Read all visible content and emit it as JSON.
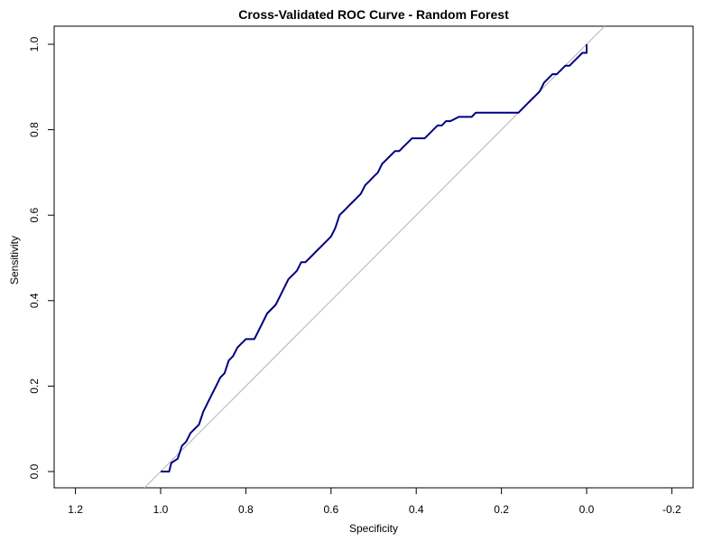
{
  "chart_data": {
    "type": "line",
    "title": "Cross-Validated ROC Curve - Random Forest",
    "xlabel": "Specificity",
    "ylabel": "Sensitivity",
    "xlim": [
      1.2,
      -0.2
    ],
    "ylim": [
      0.0,
      1.0
    ],
    "x_reversed": true,
    "grid": false,
    "legend": "none",
    "x_ticks": [
      "1.2",
      "1.0",
      "0.8",
      "0.6",
      "0.4",
      "0.2",
      "0.0",
      "-0.2"
    ],
    "y_ticks": [
      "0.0",
      "0.2",
      "0.4",
      "0.6",
      "0.8",
      "1.0"
    ],
    "reference_line": {
      "from": [
        1.0,
        0.0
      ],
      "to": [
        0.0,
        1.0
      ],
      "color": "#bdbdbd"
    },
    "series": [
      {
        "color": "#00007f",
        "x": [
          1.0,
          0.98,
          0.975,
          0.96,
          0.95,
          0.94,
          0.93,
          0.91,
          0.9,
          0.89,
          0.88,
          0.87,
          0.86,
          0.85,
          0.84,
          0.83,
          0.82,
          0.81,
          0.8,
          0.79,
          0.78,
          0.77,
          0.76,
          0.75,
          0.73,
          0.72,
          0.71,
          0.7,
          0.69,
          0.68,
          0.67,
          0.66,
          0.65,
          0.64,
          0.63,
          0.62,
          0.61,
          0.6,
          0.59,
          0.58,
          0.57,
          0.56,
          0.55,
          0.54,
          0.53,
          0.52,
          0.51,
          0.5,
          0.49,
          0.48,
          0.47,
          0.46,
          0.45,
          0.44,
          0.43,
          0.42,
          0.41,
          0.4,
          0.39,
          0.38,
          0.37,
          0.36,
          0.35,
          0.34,
          0.33,
          0.32,
          0.3,
          0.28,
          0.27,
          0.26,
          0.25,
          0.24,
          0.23,
          0.22,
          0.2,
          0.18,
          0.16,
          0.14,
          0.13,
          0.12,
          0.11,
          0.1,
          0.09,
          0.08,
          0.07,
          0.06,
          0.05,
          0.04,
          0.03,
          0.02,
          0.01,
          0.0,
          0.0
        ],
        "y": [
          0.0,
          0.0,
          0.02,
          0.03,
          0.06,
          0.07,
          0.09,
          0.11,
          0.14,
          0.16,
          0.18,
          0.2,
          0.22,
          0.23,
          0.26,
          0.27,
          0.29,
          0.3,
          0.31,
          0.31,
          0.31,
          0.33,
          0.35,
          0.37,
          0.39,
          0.41,
          0.43,
          0.45,
          0.46,
          0.47,
          0.49,
          0.49,
          0.5,
          0.51,
          0.52,
          0.53,
          0.54,
          0.55,
          0.57,
          0.6,
          0.61,
          0.62,
          0.63,
          0.64,
          0.65,
          0.67,
          0.68,
          0.69,
          0.7,
          0.72,
          0.73,
          0.74,
          0.75,
          0.75,
          0.76,
          0.77,
          0.78,
          0.78,
          0.78,
          0.78,
          0.79,
          0.8,
          0.81,
          0.81,
          0.82,
          0.82,
          0.83,
          0.83,
          0.83,
          0.84,
          0.84,
          0.84,
          0.84,
          0.84,
          0.84,
          0.84,
          0.84,
          0.86,
          0.87,
          0.88,
          0.89,
          0.91,
          0.92,
          0.93,
          0.93,
          0.94,
          0.95,
          0.95,
          0.96,
          0.97,
          0.98,
          0.98,
          1.0
        ]
      }
    ]
  }
}
